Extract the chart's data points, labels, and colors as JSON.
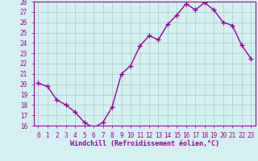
{
  "x": [
    0,
    1,
    2,
    3,
    4,
    5,
    6,
    7,
    8,
    9,
    10,
    11,
    12,
    13,
    14,
    15,
    16,
    17,
    18,
    19,
    20,
    21,
    22,
    23
  ],
  "y": [
    20.1,
    19.8,
    18.5,
    18.0,
    17.3,
    16.3,
    15.8,
    16.3,
    17.8,
    21.0,
    21.8,
    23.7,
    24.7,
    24.3,
    25.8,
    26.7,
    27.8,
    27.2,
    27.9,
    27.2,
    26.0,
    25.7,
    23.8,
    22.5
  ],
  "line_color": "#990099",
  "marker": "+",
  "marker_size": 4,
  "bg_color": "#d4f0f0",
  "grid_color": "#aacccc",
  "xlabel": "Windchill (Refroidissement éolien,°C)",
  "ylim": [
    16,
    28
  ],
  "xlim_min": -0.5,
  "xlim_max": 23.5,
  "yticks": [
    16,
    17,
    18,
    19,
    20,
    21,
    22,
    23,
    24,
    25,
    26,
    27,
    28
  ],
  "xticks": [
    0,
    1,
    2,
    3,
    4,
    5,
    6,
    7,
    8,
    9,
    10,
    11,
    12,
    13,
    14,
    15,
    16,
    17,
    18,
    19,
    20,
    21,
    22,
    23
  ],
  "axis_color": "#990099",
  "tick_label_color": "#990099",
  "xlabel_color": "#990099",
  "line_width": 1.0,
  "marker_color": "#990099",
  "tick_fontsize": 5.5,
  "xlabel_fontsize": 6.0
}
